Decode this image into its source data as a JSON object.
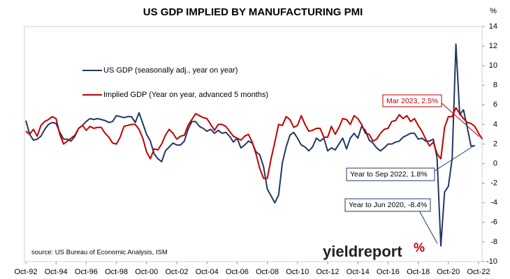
{
  "chart_data": {
    "type": "line",
    "title": "US GDP IMPLIED BY MANUFACTURING PMI",
    "y_axis_label": "%",
    "source": "source: US Bureau of Economic Analysis, ISM",
    "logo": "yieldreport",
    "logo_mark": "%",
    "annotations": [
      "Mar 2023, 2.5%",
      "Year to Sep 2022, 1.8%",
      "Year to Jun 2020, -8.4%"
    ],
    "ylim": [
      -10,
      14
    ],
    "yticks": [
      -10,
      -8,
      -6,
      -4,
      -2,
      0,
      2,
      4,
      6,
      8,
      10,
      12,
      14
    ],
    "grid": false,
    "legend": "upper left",
    "categories": [
      "Oct-92",
      null,
      null,
      null,
      null,
      null,
      null,
      null,
      "Oct-94",
      null,
      null,
      null,
      null,
      null,
      null,
      null,
      "Oct-96",
      null,
      null,
      null,
      null,
      null,
      null,
      null,
      "Oct-98",
      null,
      null,
      null,
      null,
      null,
      null,
      null,
      "Oct-00",
      null,
      null,
      null,
      null,
      null,
      null,
      null,
      "Oct-02",
      null,
      null,
      null,
      null,
      null,
      null,
      null,
      "Oct-04",
      null,
      null,
      null,
      null,
      null,
      null,
      null,
      "Oct-06",
      null,
      null,
      null,
      null,
      null,
      null,
      null,
      "Oct-08",
      null,
      null,
      null,
      null,
      null,
      null,
      null,
      "Oct-10",
      null,
      null,
      null,
      null,
      null,
      null,
      null,
      "Oct-12",
      null,
      null,
      null,
      null,
      null,
      null,
      null,
      "Oct-14",
      null,
      null,
      null,
      null,
      null,
      null,
      null,
      "Oct-16",
      null,
      null,
      null,
      null,
      null,
      null,
      null,
      "Oct-18",
      null,
      null,
      null,
      null,
      null,
      null,
      null,
      "Oct-20",
      null,
      null,
      null,
      null,
      null,
      null,
      null,
      "Oct-22",
      null
    ],
    "series": [
      {
        "name": "US GDP (seasonally adj., year on year)",
        "color": "#1f3864",
        "values": [
          4.4,
          3.0,
          2.4,
          2.5,
          2.8,
          3.5,
          4.0,
          4.2,
          4.1,
          3.2,
          2.5,
          2.5,
          2.3,
          2.8,
          3.6,
          3.9,
          4.3,
          4.6,
          4.5,
          4.6,
          4.5,
          4.4,
          4.2,
          4.3,
          4.9,
          4.8,
          4.7,
          4.8,
          4.8,
          4.2,
          5.2,
          4.1,
          3.0,
          2.3,
          1.0,
          0.5,
          0.2,
          1.3,
          1.7,
          2.1,
          1.9,
          1.9,
          2.3,
          3.5,
          4.3,
          4.3,
          3.8,
          3.6,
          3.3,
          3.5,
          3.1,
          3.4,
          3.1,
          3.2,
          2.8,
          2.2,
          2.6,
          1.6,
          1.9,
          2.3,
          2.1,
          1.2,
          0.9,
          -0.3,
          -2.6,
          -3.3,
          -4.0,
          -3.2,
          0.1,
          1.7,
          2.9,
          3.2,
          2.6,
          1.9,
          1.7,
          1.3,
          1.7,
          2.6,
          2.3,
          2.6,
          1.3,
          1.6,
          1.4,
          2.0,
          2.6,
          1.5,
          2.6,
          3.1,
          2.6,
          3.8,
          3.4,
          2.4,
          2.1,
          1.6,
          1.3,
          1.6,
          2.0,
          2.0,
          2.2,
          2.3,
          2.7,
          2.9,
          3.1,
          3.1,
          2.5,
          2.6,
          2.3,
          2.3,
          2.5,
          0.6,
          -8.4,
          -2.9,
          -2.3,
          0.5,
          12.2,
          5.0,
          5.5,
          3.7,
          1.8,
          1.8,
          null,
          null
        ]
      },
      {
        "name": "Implied GDP (Year on year, advanced 5 months)",
        "color": "#c00000",
        "values": [
          3.3,
          3.0,
          3.5,
          2.8,
          3.9,
          4.3,
          4.5,
          4.8,
          4.6,
          3.0,
          2.0,
          2.3,
          2.6,
          2.9,
          3.6,
          3.9,
          3.4,
          3.8,
          3.6,
          3.7,
          3.7,
          3.1,
          2.7,
          2.1,
          2.0,
          2.7,
          3.8,
          3.9,
          4.0,
          4.0,
          3.5,
          2.6,
          1.2,
          0.5,
          1.5,
          1.4,
          2.0,
          2.9,
          3.5,
          3.1,
          2.5,
          2.8,
          2.9,
          3.9,
          4.5,
          5.1,
          4.9,
          4.7,
          4.6,
          4.0,
          3.4,
          4.0,
          4.0,
          3.8,
          3.3,
          2.8,
          2.6,
          2.4,
          2.8,
          3.0,
          2.2,
          1.0,
          -0.5,
          -1.5,
          -1.5,
          0.5,
          2.2,
          4.0,
          3.9,
          4.8,
          4.5,
          3.7,
          3.9,
          4.9,
          4.0,
          3.3,
          3.4,
          3.6,
          3.6,
          2.7,
          2.7,
          3.8,
          3.0,
          3.7,
          4.6,
          4.5,
          4.0,
          4.9,
          4.6,
          4.0,
          3.1,
          3.0,
          2.3,
          2.5,
          3.1,
          3.5,
          3.6,
          4.3,
          4.4,
          5.0,
          4.6,
          4.9,
          4.3,
          4.6,
          3.9,
          3.3,
          2.5,
          1.8,
          2.2,
          1.0,
          0.5,
          3.7,
          4.8,
          4.8,
          5.7,
          5.1,
          4.6,
          4.2,
          4.1,
          3.8,
          3.1,
          2.5
        ]
      }
    ]
  }
}
